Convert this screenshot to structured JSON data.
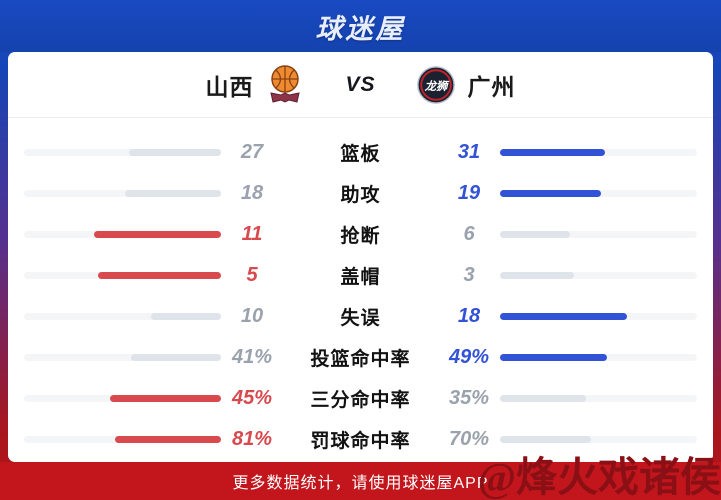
{
  "header": {
    "logo": "球迷屋"
  },
  "match": {
    "home_team": {
      "name": "山西"
    },
    "away_team": {
      "name": "广州"
    },
    "vs_label": "VS"
  },
  "stats": {
    "rows": [
      {
        "label": "篮板",
        "home": 27,
        "away": 31,
        "home_display": "27",
        "away_display": "31"
      },
      {
        "label": "助攻",
        "home": 18,
        "away": 19,
        "home_display": "18",
        "away_display": "19"
      },
      {
        "label": "抢断",
        "home": 11,
        "away": 6,
        "home_display": "11",
        "away_display": "6"
      },
      {
        "label": "盖帽",
        "home": 5,
        "away": 3,
        "home_display": "5",
        "away_display": "3"
      },
      {
        "label": "失误",
        "home": 10,
        "away": 18,
        "home_display": "10",
        "away_display": "18"
      },
      {
        "label": "投篮命中率",
        "home": 41,
        "away": 49,
        "home_display": "41%",
        "away_display": "49%"
      },
      {
        "label": "三分命中率",
        "home": 45,
        "away": 35,
        "home_display": "45%",
        "away_display": "35%"
      },
      {
        "label": "罚球命中率",
        "home": 81,
        "away": 70,
        "home_display": "81%",
        "away_display": "70%"
      }
    ]
  },
  "footer": {
    "text": "更多数据统计，请使用球迷屋APP"
  },
  "watermark": "@烽火戏诸侯",
  "colors": {
    "accent_red": "#d84a4e",
    "accent_blue": "#3353d6",
    "loser_gray_text": "#9aa2ad",
    "loser_gray_fill": "#dfe3ea",
    "bar_track": "#f4f5f7",
    "header_blue": "#1645b6",
    "footer_red": "#c2161c",
    "watermark_red": "#8b1016"
  }
}
